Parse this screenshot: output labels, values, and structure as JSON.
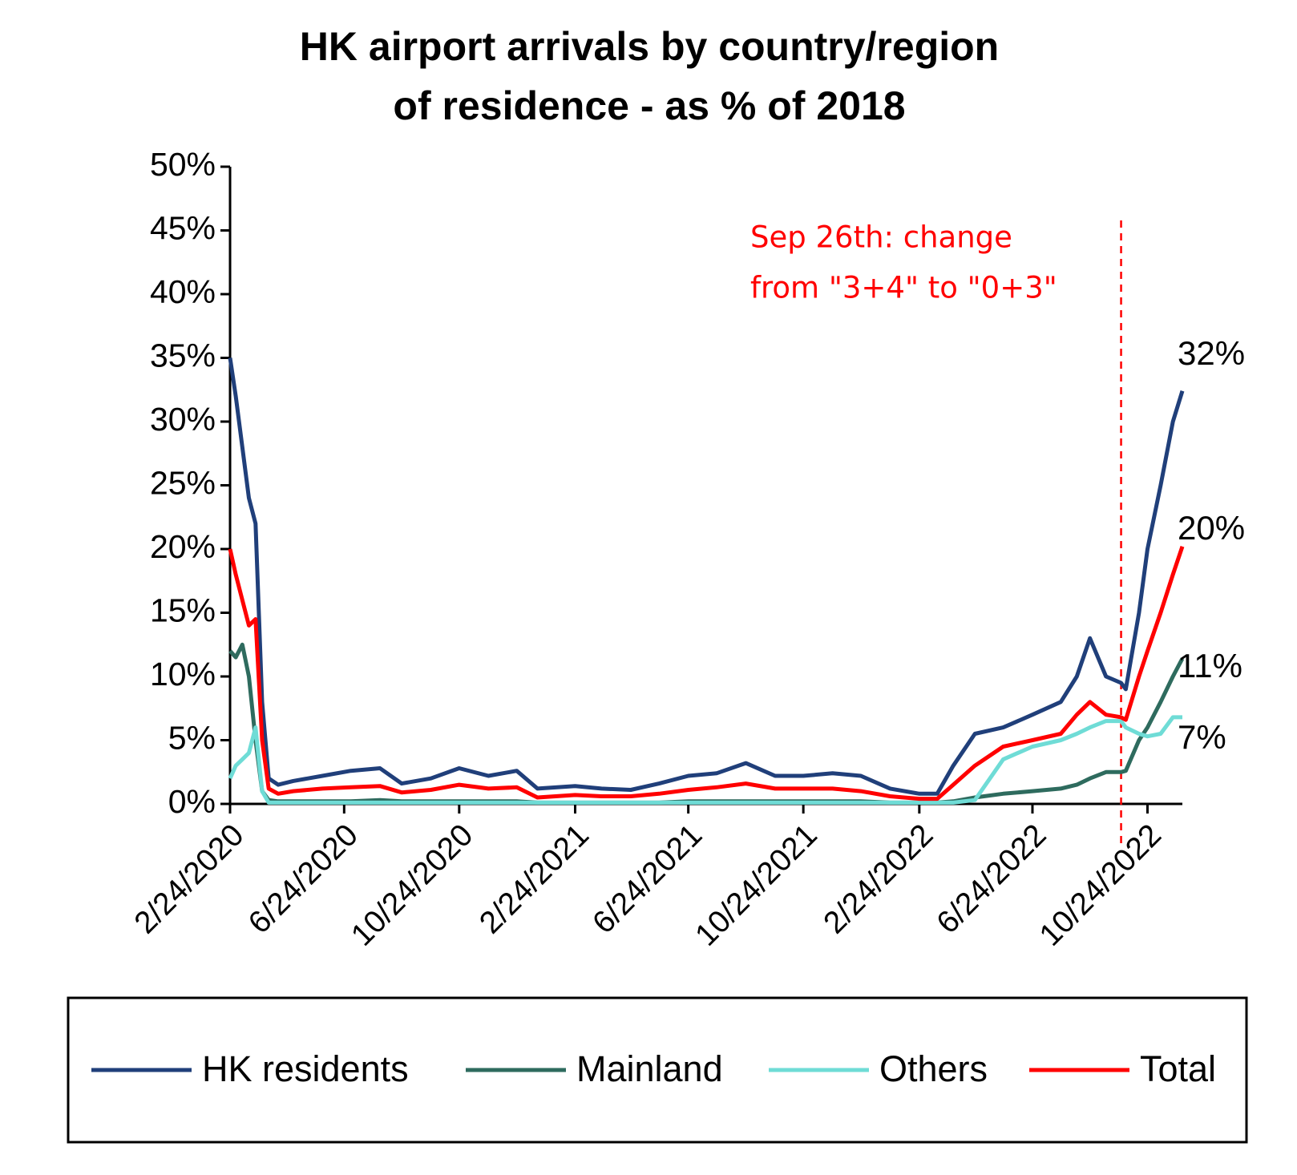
{
  "chart_data": {
    "type": "line",
    "title": [
      "HK airport arrivals by country/region",
      "of residence - as % of 2018"
    ],
    "x": [
      "2/24/2020",
      "3/1/2020",
      "3/8/2020",
      "3/15/2020",
      "3/22/2020",
      "3/29/2020",
      "4/5/2020",
      "4/15/2020",
      "5/1/2020",
      "6/1/2020",
      "7/1/2020",
      "8/1/2020",
      "8/24/2020",
      "9/24/2020",
      "10/24/2020",
      "11/24/2020",
      "12/24/2020",
      "1/15/2021",
      "2/24/2021",
      "3/24/2021",
      "4/24/2021",
      "5/24/2021",
      "6/24/2021",
      "7/24/2021",
      "8/24/2021",
      "9/24/2021",
      "10/24/2021",
      "11/24/2021",
      "12/24/2021",
      "1/24/2022",
      "2/24/2022",
      "3/15/2022",
      "4/1/2022",
      "4/24/2022",
      "5/24/2022",
      "6/24/2022",
      "7/24/2022",
      "8/10/2022",
      "8/24/2022",
      "9/10/2022",
      "9/26/2022",
      "10/1/2022",
      "10/15/2022",
      "10/24/2022",
      "11/7/2022",
      "11/20/2022",
      "11/30/2022"
    ],
    "series": [
      {
        "name": "HK residents",
        "color": "#203f7a",
        "end_label": "32%",
        "values": [
          35,
          32,
          28,
          24,
          22,
          8,
          2,
          1.5,
          1.8,
          2.2,
          2.6,
          2.8,
          1.6,
          2,
          2.8,
          2.2,
          2.6,
          1.2,
          1.4,
          1.2,
          1.1,
          1.6,
          2.2,
          2.4,
          3.2,
          2.2,
          2.2,
          2.4,
          2.2,
          1.2,
          0.8,
          0.8,
          3,
          5.5,
          6,
          7,
          8,
          10,
          13,
          10,
          9.5,
          9,
          15,
          20,
          25,
          30,
          32.4
        ]
      },
      {
        "name": "Mainland",
        "color": "#2e6b5e",
        "end_label": "11%",
        "values": [
          12,
          11.5,
          12.5,
          10,
          5,
          1,
          0.3,
          0.2,
          0.2,
          0.2,
          0.2,
          0.3,
          0.2,
          0.2,
          0.2,
          0.2,
          0.2,
          0.1,
          0.1,
          0.1,
          0.1,
          0.1,
          0.2,
          0.2,
          0.2,
          0.2,
          0.2,
          0.2,
          0.2,
          0.1,
          0.1,
          0.1,
          0.2,
          0.5,
          0.8,
          1,
          1.2,
          1.5,
          2,
          2.5,
          2.5,
          2.6,
          5,
          6,
          8,
          10,
          11.4
        ]
      },
      {
        "name": "Others",
        "color": "#6fdcd6",
        "end_label": "7%",
        "values": [
          2,
          3,
          3.5,
          4,
          6,
          1,
          0.1,
          0.1,
          0.1,
          0.1,
          0.1,
          0.1,
          0.1,
          0.1,
          0.1,
          0.1,
          0.1,
          0.1,
          0.1,
          0.1,
          0.1,
          0.1,
          0.1,
          0.1,
          0.1,
          0.1,
          0.1,
          0.1,
          0.1,
          0.1,
          0.1,
          0.1,
          0.1,
          0.3,
          3.5,
          4.5,
          5,
          5.5,
          6,
          6.5,
          6.5,
          6,
          5.5,
          5.3,
          5.5,
          6.8,
          6.8
        ]
      },
      {
        "name": "Total",
        "color": "#ff0000",
        "end_label": "20%",
        "values": [
          20,
          18,
          16,
          14,
          14.5,
          5,
          1.2,
          0.8,
          1,
          1.2,
          1.3,
          1.4,
          0.9,
          1.1,
          1.5,
          1.2,
          1.3,
          0.5,
          0.7,
          0.6,
          0.6,
          0.8,
          1.1,
          1.3,
          1.6,
          1.2,
          1.2,
          1.2,
          1,
          0.6,
          0.4,
          0.4,
          1.5,
          3,
          4.5,
          5,
          5.5,
          7,
          8,
          7,
          6.8,
          6.6,
          10,
          12,
          15,
          18,
          20.2
        ]
      }
    ],
    "xlim": [
      "2/24/2020",
      "11/30/2022"
    ],
    "xticks": [
      "2/24/2020",
      "6/24/2020",
      "10/24/2020",
      "2/24/2021",
      "6/24/2021",
      "10/24/2021",
      "2/24/2022",
      "6/24/2022",
      "10/24/2022"
    ],
    "ylim": [
      0,
      50
    ],
    "yticks": [
      {
        "value": 0,
        "label": "0%"
      },
      {
        "value": 5,
        "label": "5%"
      },
      {
        "value": 10,
        "label": "10%"
      },
      {
        "value": 15,
        "label": "15%"
      },
      {
        "value": 20,
        "label": "20%"
      },
      {
        "value": 25,
        "label": "25%"
      },
      {
        "value": 30,
        "label": "30%"
      },
      {
        "value": 35,
        "label": "35%"
      },
      {
        "value": 40,
        "label": "40%"
      },
      {
        "value": 45,
        "label": "45%"
      },
      {
        "value": 50,
        "label": "50%"
      }
    ],
    "annotation": {
      "text": [
        "Sep 26th: change",
        "from \"3+4\" to \"0+3\""
      ],
      "x": "9/26/2022"
    }
  }
}
